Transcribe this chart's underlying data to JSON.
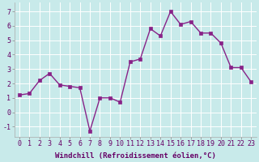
{
  "x": [
    0,
    1,
    2,
    3,
    4,
    5,
    6,
    7,
    8,
    9,
    10,
    11,
    12,
    13,
    14,
    15,
    16,
    17,
    18,
    19,
    20,
    21,
    22,
    23
  ],
  "y": [
    1.2,
    1.3,
    2.2,
    2.7,
    1.9,
    1.8,
    1.7,
    -1.3,
    1.0,
    1.0,
    0.7,
    3.5,
    3.7,
    5.8,
    5.3,
    7.0,
    6.1,
    6.3,
    5.5,
    5.5,
    4.8,
    3.1,
    3.1,
    2.1
  ],
  "line_color": "#882288",
  "marker": "s",
  "marker_size": 2.2,
  "line_width": 1.0,
  "background_color": "#c8eaea",
  "grid_color": "#aacccc",
  "xlabel": "Windchill (Refroidissement éolien,°C)",
  "xlabel_fontsize": 6.5,
  "tick_fontsize": 6,
  "xlim": [
    -0.5,
    23.5
  ],
  "ylim": [
    -1.7,
    7.6
  ],
  "yticks": [
    -1,
    0,
    1,
    2,
    3,
    4,
    5,
    6,
    7
  ],
  "xtick_labels": [
    "0",
    "1",
    "2",
    "3",
    "4",
    "5",
    "6",
    "7",
    "8",
    "9",
    "10",
    "11",
    "12",
    "13",
    "14",
    "15",
    "16",
    "17",
    "18",
    "19",
    "20",
    "21",
    "22",
    "23"
  ]
}
